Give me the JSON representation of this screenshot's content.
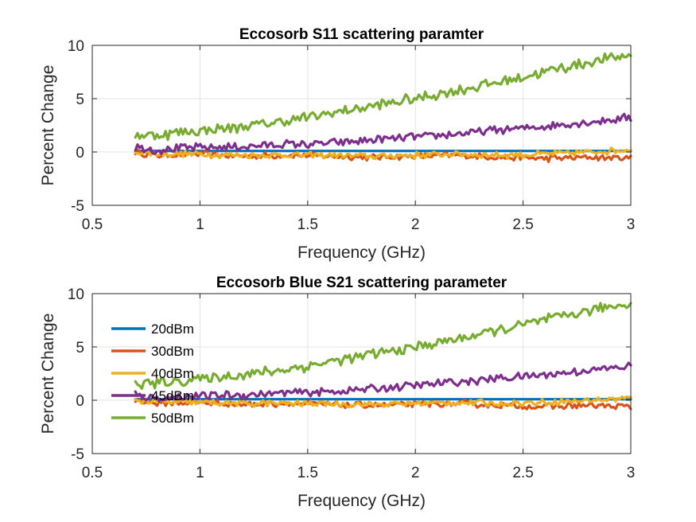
{
  "chart_data": [
    {
      "type": "line",
      "title": "Eccosorb S11 scattering paramter",
      "xlabel": "Frequency (GHz)",
      "ylabel": "Percent Change",
      "xlim": [
        0.5,
        3
      ],
      "ylim": [
        -5,
        10
      ],
      "xticks": [
        "0.5",
        "1",
        "1.5",
        "2",
        "2.5",
        "3"
      ],
      "yticks": [
        "-5",
        "0",
        "5",
        "10"
      ],
      "grid": true,
      "legend": null,
      "series": [
        {
          "name": "20dBm",
          "color": "#0072BD",
          "x": [
            0.7,
            3.0
          ],
          "y": [
            0.1,
            0.1
          ]
        },
        {
          "name": "30dBm",
          "color": "#D95319",
          "x": [
            0.7,
            0.8,
            1.0,
            1.2,
            1.4,
            1.6,
            1.8,
            2.0,
            2.2,
            2.4,
            2.6,
            2.8,
            3.0
          ],
          "y": [
            0.0,
            -0.3,
            -0.2,
            -0.4,
            -0.3,
            -0.4,
            -0.5,
            -0.4,
            -0.3,
            -0.5,
            -0.6,
            -0.5,
            -0.6
          ]
        },
        {
          "name": "40dBm",
          "color": "#EDB120",
          "x": [
            0.7,
            0.8,
            1.0,
            1.2,
            1.4,
            1.6,
            1.8,
            2.0,
            2.2,
            2.4,
            2.6,
            2.8,
            3.0
          ],
          "y": [
            0.0,
            -0.2,
            -0.2,
            -0.3,
            -0.3,
            -0.3,
            -0.4,
            -0.3,
            -0.2,
            -0.3,
            -0.2,
            0.0,
            0.2
          ]
        },
        {
          "name": "45dBm",
          "color": "#7E2F8E",
          "x": [
            0.7,
            0.8,
            1.0,
            1.2,
            1.4,
            1.6,
            1.8,
            2.0,
            2.2,
            2.4,
            2.6,
            2.8,
            3.0
          ],
          "y": [
            0.5,
            0.2,
            0.4,
            0.5,
            0.7,
            0.8,
            1.1,
            1.4,
            1.7,
            2.1,
            2.4,
            2.8,
            3.2
          ]
        },
        {
          "name": "50dBm",
          "color": "#77AC30",
          "x": [
            0.7,
            0.8,
            1.0,
            1.2,
            1.4,
            1.6,
            1.8,
            2.0,
            2.2,
            2.4,
            2.6,
            2.8,
            3.0
          ],
          "y": [
            1.6,
            1.6,
            2.0,
            2.4,
            2.9,
            3.6,
            4.3,
            5.0,
            5.8,
            6.6,
            7.5,
            8.4,
            9.1
          ]
        }
      ]
    },
    {
      "type": "line",
      "title": "Eccosorb Blue S21 scattering parameter",
      "xlabel": "Frequency (GHz)",
      "ylabel": "Percent Change",
      "xlim": [
        0.5,
        3
      ],
      "ylim": [
        -5,
        10
      ],
      "xticks": [
        "0.5",
        "1",
        "1.5",
        "2",
        "2.5",
        "3"
      ],
      "yticks": [
        "-5",
        "0",
        "5",
        "10"
      ],
      "grid": true,
      "legend": "top-left",
      "series": [
        {
          "name": "20dBm",
          "color": "#0072BD",
          "x": [
            0.7,
            3.0
          ],
          "y": [
            0.1,
            0.1
          ]
        },
        {
          "name": "30dBm",
          "color": "#D95319",
          "x": [
            0.7,
            0.8,
            1.0,
            1.2,
            1.4,
            1.6,
            1.8,
            2.0,
            2.2,
            2.4,
            2.6,
            2.8,
            3.0
          ],
          "y": [
            0.0,
            -0.3,
            -0.2,
            -0.4,
            -0.3,
            -0.4,
            -0.5,
            -0.4,
            -0.3,
            -0.5,
            -0.6,
            -0.5,
            -0.6
          ]
        },
        {
          "name": "40dBm",
          "color": "#EDB120",
          "x": [
            0.7,
            0.8,
            1.0,
            1.2,
            1.4,
            1.6,
            1.8,
            2.0,
            2.2,
            2.4,
            2.6,
            2.8,
            3.0
          ],
          "y": [
            0.0,
            -0.2,
            -0.2,
            -0.3,
            -0.3,
            -0.3,
            -0.4,
            -0.3,
            -0.2,
            -0.3,
            -0.2,
            0.0,
            0.2
          ]
        },
        {
          "name": "45dBm",
          "color": "#7E2F8E",
          "x": [
            0.7,
            0.8,
            1.0,
            1.2,
            1.4,
            1.6,
            1.8,
            2.0,
            2.2,
            2.4,
            2.6,
            2.8,
            3.0
          ],
          "y": [
            0.5,
            0.2,
            0.4,
            0.5,
            0.7,
            0.8,
            1.1,
            1.4,
            1.7,
            2.1,
            2.4,
            2.8,
            3.2
          ]
        },
        {
          "name": "50dBm",
          "color": "#77AC30",
          "x": [
            0.7,
            0.8,
            1.0,
            1.2,
            1.4,
            1.6,
            1.8,
            2.0,
            2.2,
            2.4,
            2.6,
            2.8,
            3.0
          ],
          "y": [
            1.6,
            1.6,
            2.0,
            2.4,
            2.9,
            3.6,
            4.3,
            5.0,
            5.8,
            6.6,
            7.5,
            8.4,
            9.1
          ]
        }
      ]
    }
  ]
}
